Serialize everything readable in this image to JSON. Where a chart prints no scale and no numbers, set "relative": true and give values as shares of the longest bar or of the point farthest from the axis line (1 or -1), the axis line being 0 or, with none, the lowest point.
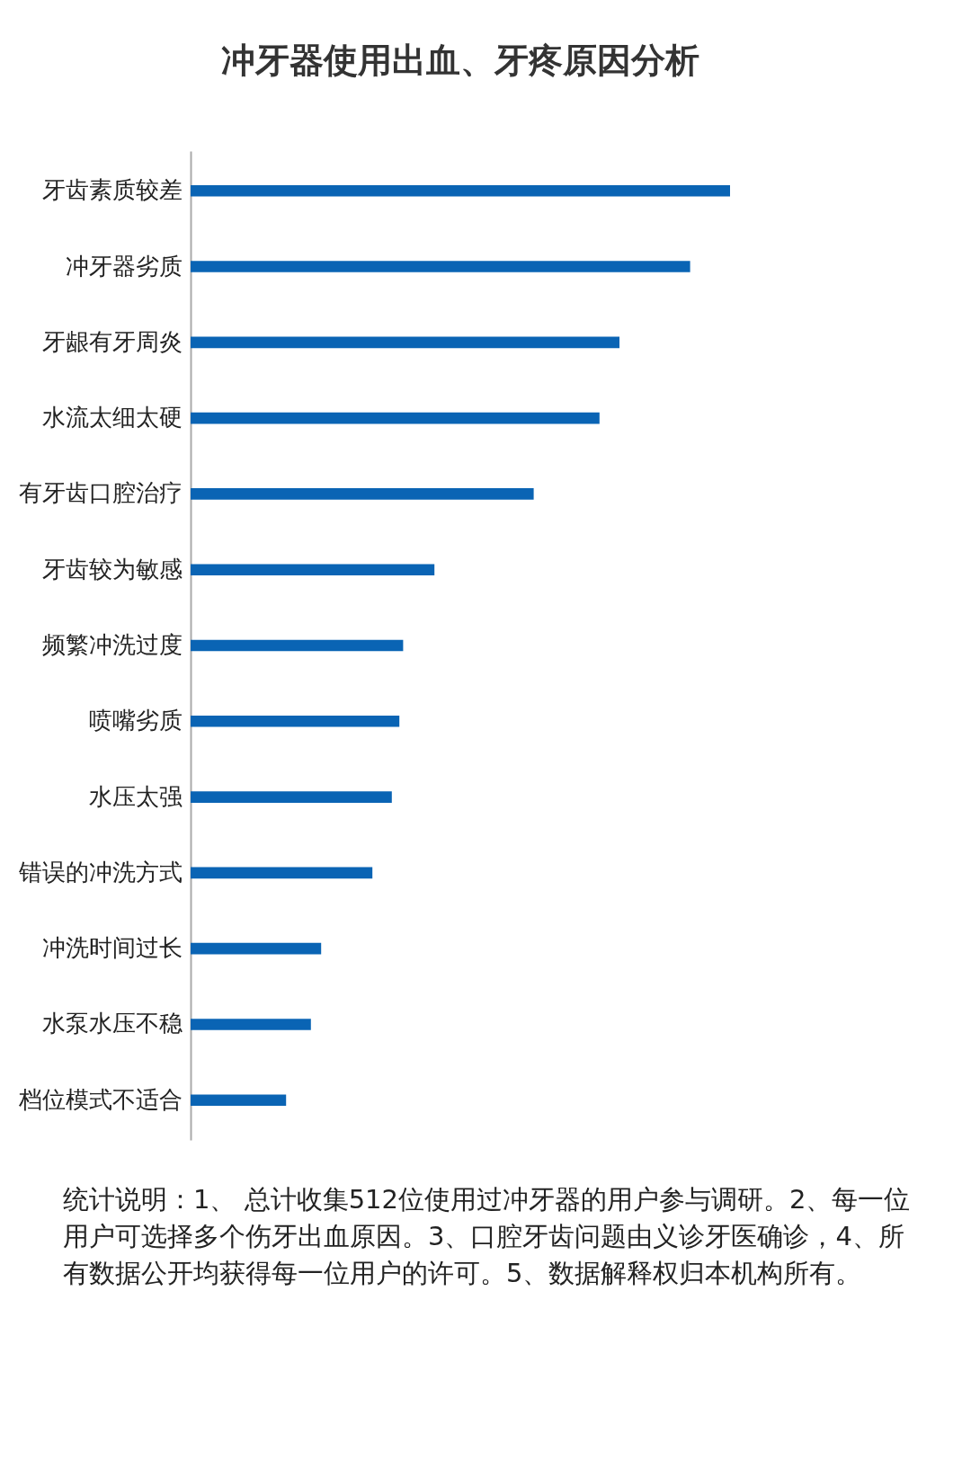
{
  "chart_data": {
    "type": "bar",
    "orientation": "horizontal",
    "relative": true,
    "title": "冲牙器使用出血、牙疼原因分析",
    "categories": [
      "牙齿素质较差",
      "冲牙器劣质",
      "牙龈有牙周炎",
      "水流太细太硬",
      "有牙齿口腔治疗",
      "牙齿较为敏感",
      "频繁冲洗过度",
      "喷嘴劣质",
      "水压太强",
      "错误的冲洗方式",
      "冲洗时间过长",
      "水泵水压不稳",
      "档位模式不适合"
    ],
    "values": [
      1,
      0.926,
      0.795,
      0.758,
      0.636,
      0.452,
      0.394,
      0.387,
      0.373,
      0.337,
      0.242,
      0.223,
      0.177
    ],
    "color": "#0a64b4",
    "annotations": [
      "统计说明：1、 总计收集512位使用过冲牙器的用户参与调研。2、每一位用户可选择多个伤牙出血原因。3、口腔牙齿问题由义诊牙医确诊，4、所有数据公开均获得每一位用户的许可。5、数据解释权归本机构所有。"
    ]
  }
}
